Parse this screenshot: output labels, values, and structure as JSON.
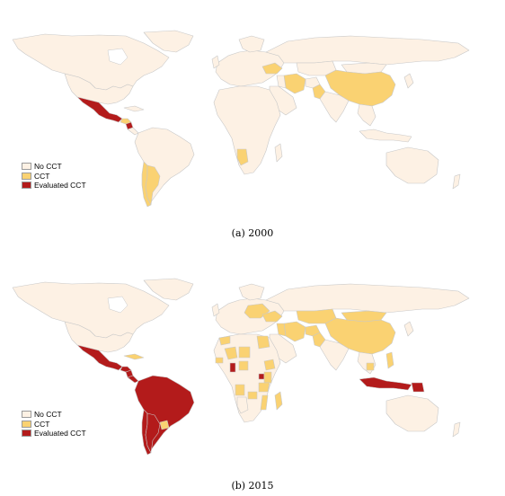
{
  "colors": {
    "no_cct": "#fdf1e4",
    "cct": "#fad272",
    "evaluated_cct": "#b31b1b",
    "border": "#c8c8c8"
  },
  "legend": [
    {
      "label": "No CCT",
      "color": "#fdf1e4"
    },
    {
      "label": "CCT",
      "color": "#fad272"
    },
    {
      "label": "Evaluated CCT",
      "color": "#b31b1b"
    }
  ],
  "panels": [
    {
      "caption": "(a) 2000",
      "cct": [
        "Turkey",
        "Iran",
        "Pakistan",
        "China",
        "Honduras",
        "Chile",
        "Argentina",
        "Namibia"
      ],
      "evaluated_cct": [
        "Mexico",
        "Nicaragua"
      ]
    },
    {
      "caption": "(b) 2015",
      "cct": [
        "Kazakhstan",
        "Mongolia",
        "China",
        "Turkey",
        "Iran",
        "Iraq",
        "Afghanistan",
        "Pakistan",
        "Egypt",
        "Mali",
        "Niger",
        "Nigeria",
        "Ethiopia",
        "Kenya",
        "Tanzania",
        "Morocco",
        "Senegal",
        "Angola",
        "Mozambique",
        "Zambia",
        "Madagascar",
        "Philippines",
        "Cambodia",
        "Uruguay",
        "Eastern Europe"
      ],
      "evaluated_cct": [
        "Mexico",
        "Guatemala",
        "Honduras",
        "Nicaragua",
        "Colombia",
        "Venezuela",
        "Ecuador",
        "Peru",
        "Bolivia",
        "Brazil",
        "Paraguay",
        "Chile",
        "Argentina",
        "Ghana",
        "Uganda",
        "Indonesia",
        "Papua New Guinea"
      ]
    }
  ]
}
